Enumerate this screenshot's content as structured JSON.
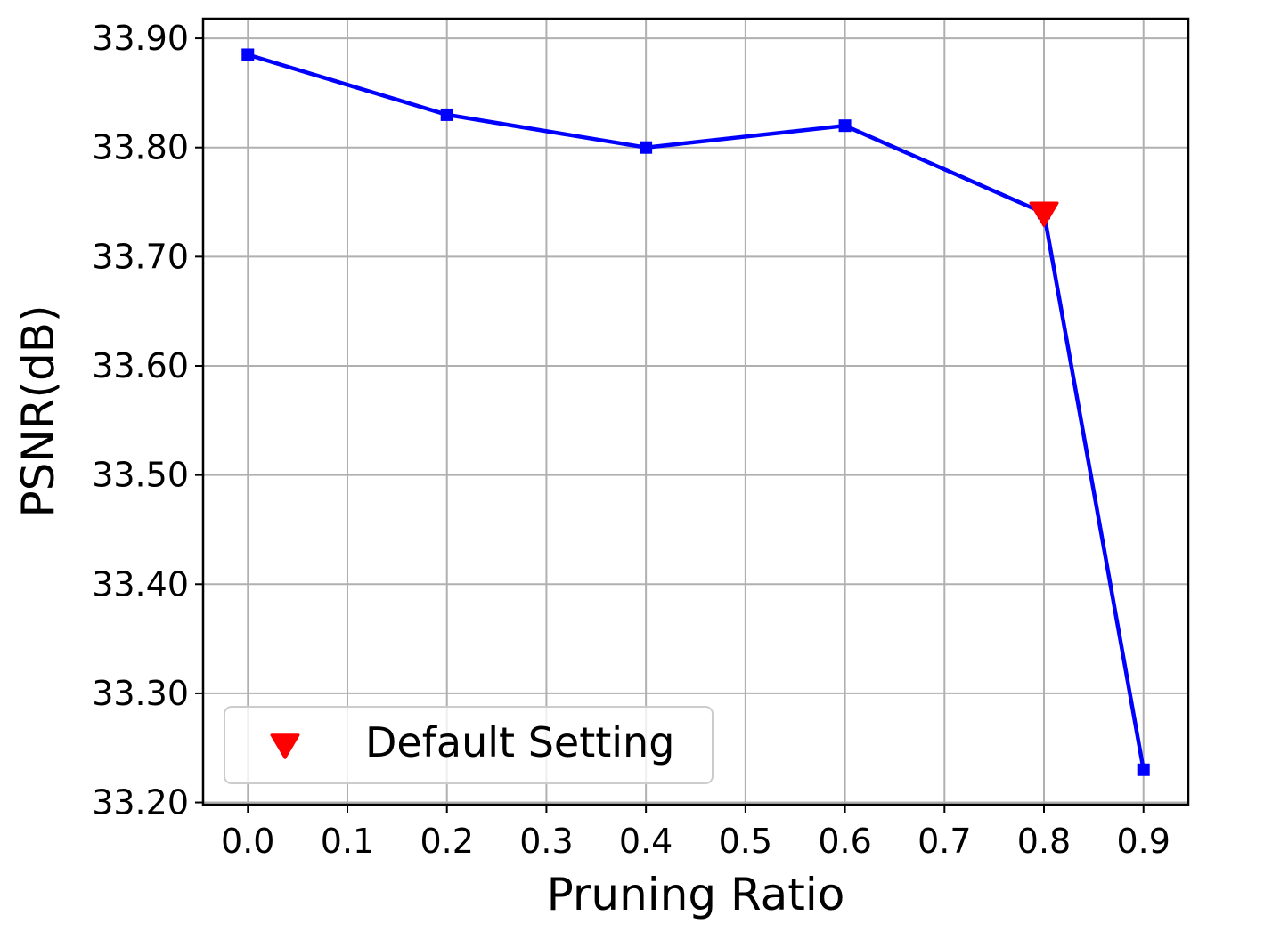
{
  "chart_data": {
    "type": "line",
    "xlabel": "Pruning Ratio",
    "ylabel": "PSNR(dB)",
    "xlim": [
      -0.045,
      0.945
    ],
    "ylim": [
      33.198,
      33.918
    ],
    "x_ticks": [
      0.0,
      0.1,
      0.2,
      0.3,
      0.4,
      0.5,
      0.6,
      0.7,
      0.8,
      0.9
    ],
    "x_tick_labels": [
      "0.0",
      "0.1",
      "0.2",
      "0.3",
      "0.4",
      "0.5",
      "0.6",
      "0.7",
      "0.8",
      "0.9"
    ],
    "y_ticks": [
      33.2,
      33.3,
      33.4,
      33.5,
      33.6,
      33.7,
      33.8,
      33.9
    ],
    "y_tick_labels": [
      "33.20",
      "33.30",
      "33.40",
      "33.50",
      "33.60",
      "33.70",
      "33.80",
      "33.90"
    ],
    "grid": true,
    "series": [
      {
        "x": [
          0.0,
          0.2,
          0.4,
          0.6,
          0.8,
          0.9
        ],
        "y": [
          33.885,
          33.83,
          33.8,
          33.82,
          33.74,
          33.23
        ],
        "color": "#0000ff",
        "marker": "square"
      }
    ],
    "highlight": {
      "name": "Default Setting",
      "x": 0.8,
      "y": 33.74,
      "color": "#ff0000",
      "marker": "triangle-down"
    },
    "legend": {
      "position": "lower-left",
      "entries": [
        {
          "label": "Default Setting",
          "marker": "triangle-down",
          "color": "#ff0000"
        }
      ]
    }
  }
}
